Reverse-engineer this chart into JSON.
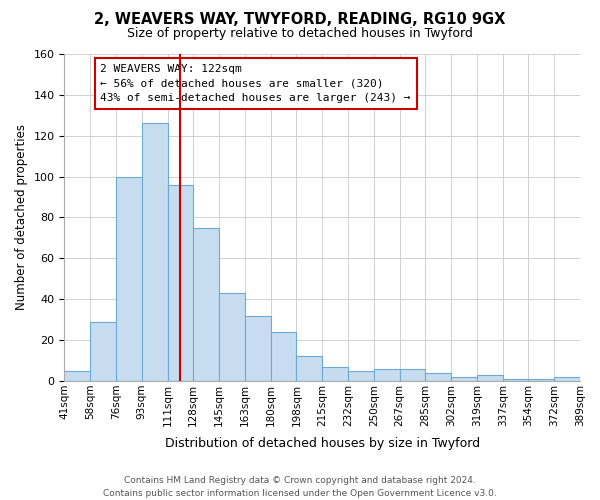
{
  "title1": "2, WEAVERS WAY, TWYFORD, READING, RG10 9GX",
  "title2": "Size of property relative to detached houses in Twyford",
  "xlabel": "Distribution of detached houses by size in Twyford",
  "ylabel": "Number of detached properties",
  "bin_labels": [
    "41sqm",
    "58sqm",
    "76sqm",
    "93sqm",
    "111sqm",
    "128sqm",
    "145sqm",
    "163sqm",
    "180sqm",
    "198sqm",
    "215sqm",
    "232sqm",
    "250sqm",
    "267sqm",
    "285sqm",
    "302sqm",
    "319sqm",
    "337sqm",
    "354sqm",
    "372sqm",
    "389sqm"
  ],
  "bar_values": [
    5,
    29,
    100,
    126,
    96,
    75,
    43,
    32,
    24,
    12,
    7,
    5,
    6,
    6,
    4,
    2,
    3,
    1,
    1,
    2
  ],
  "bar_color": "#c8dcf0",
  "bar_edge_color": "#6aaad4",
  "property_line_color": "#cc0000",
  "property_line_x": 4.5,
  "ylim": [
    0,
    160
  ],
  "yticks": [
    0,
    20,
    40,
    60,
    80,
    100,
    120,
    140,
    160
  ],
  "annotation_title": "2 WEAVERS WAY: 122sqm",
  "annotation_line1": "← 56% of detached houses are smaller (320)",
  "annotation_line2": "43% of semi-detached houses are larger (243) →",
  "annotation_box_color": "#ffffff",
  "annotation_box_edge": "#cc0000",
  "footer1": "Contains HM Land Registry data © Crown copyright and database right 2024.",
  "footer2": "Contains public sector information licensed under the Open Government Licence v3.0."
}
